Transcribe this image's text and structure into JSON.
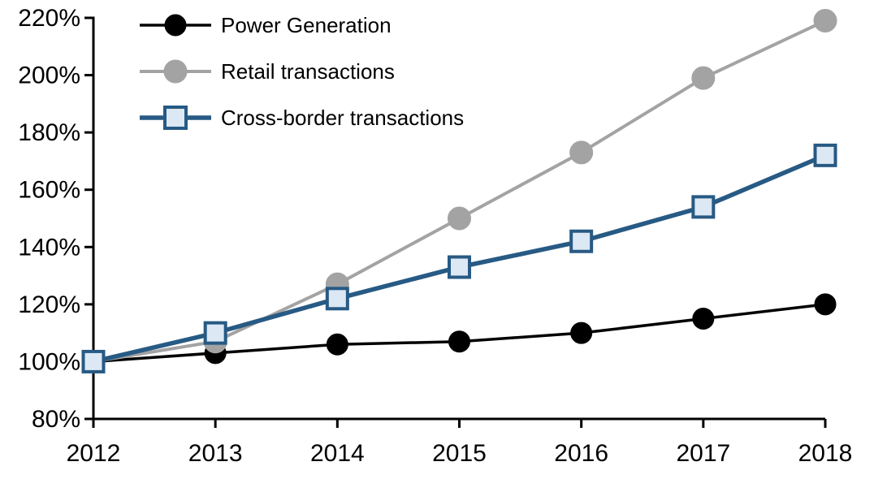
{
  "chart_data": {
    "type": "line",
    "title": "",
    "xlabel": "",
    "ylabel": "",
    "x": [
      "2012",
      "2013",
      "2014",
      "2015",
      "2016",
      "2017",
      "2018"
    ],
    "ylim": [
      80,
      220
    ],
    "ytick_step": 20,
    "ytick_labels": [
      "80%",
      "100%",
      "120%",
      "140%",
      "160%",
      "180%",
      "200%",
      "220%"
    ],
    "grid": false,
    "legend_position": "top-left",
    "background_color": "#ffffff",
    "axis_color": "#000000",
    "series": [
      {
        "name": "Power Generation",
        "values": [
          100,
          103,
          106,
          107,
          110,
          115,
          120
        ],
        "color": "#000000",
        "marker": "circle",
        "marker_fill": "#000000",
        "line_width": 3.5,
        "marker_size": 13
      },
      {
        "name": "Retail transactions",
        "values": [
          100,
          107,
          127,
          150,
          173,
          199,
          219
        ],
        "color": "#a3a3a3",
        "marker": "circle",
        "marker_fill": "#a3a3a3",
        "line_width": 4,
        "marker_size": 14
      },
      {
        "name": "Cross-border transactions",
        "values": [
          100,
          110,
          122,
          133,
          142,
          154,
          172
        ],
        "color": "#275a84",
        "marker": "square",
        "marker_fill": "#dce8f4",
        "line_width": 5.5,
        "marker_size": 13
      }
    ]
  }
}
